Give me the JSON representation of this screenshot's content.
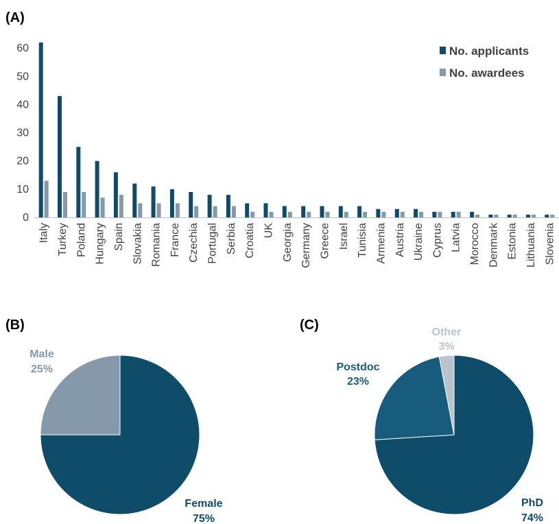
{
  "panels": {
    "a": "(A)",
    "b": "(B)",
    "c": "(C)"
  },
  "colors": {
    "applicants": "#0f4c6a",
    "awardees": "#8599ab",
    "axis": "#bfbfbf",
    "tick_text": "#404040",
    "female": "#0f4c6a",
    "male": "#8599ab",
    "phd": "#0f4c6a",
    "postdoc": "#175b7d",
    "other": "#b9c3cb"
  },
  "chart_data": [
    {
      "type": "bar",
      "categories": [
        "Italy",
        "Turkey",
        "Poland",
        "Hungary",
        "Spain",
        "Slovakia",
        "Romania",
        "France",
        "Czechia",
        "Portugal",
        "Serbia",
        "Croatia",
        "UK",
        "Georgia",
        "Germany",
        "Greece",
        "Israel",
        "Tunisia",
        "Armenia",
        "Austria",
        "Ukraine",
        "Cyprus",
        "Latvia",
        "Morocco",
        "Denmark",
        "Estonia",
        "Lithuania",
        "Slovenia"
      ],
      "series": [
        {
          "name": "No. applicants",
          "values": [
            62,
            43,
            25,
            20,
            16,
            12,
            11,
            10,
            9,
            8,
            8,
            5,
            5,
            4,
            4,
            4,
            4,
            4,
            3,
            3,
            3,
            2,
            2,
            2,
            1,
            1,
            1,
            1
          ]
        },
        {
          "name": "No. awardees",
          "values": [
            13,
            9,
            9,
            7,
            8,
            5,
            5,
            5,
            4,
            4,
            4,
            2,
            2,
            2,
            2,
            2,
            2,
            2,
            2,
            2,
            2,
            2,
            2,
            1,
            1,
            1,
            1,
            1
          ]
        }
      ],
      "ylim": [
        0,
        62
      ],
      "yticks": [
        "0",
        "10",
        "20",
        "30",
        "40",
        "50",
        "60"
      ],
      "legend": "top-right",
      "grid": false
    },
    {
      "type": "pie",
      "slices": [
        {
          "name": "Female",
          "value": 75,
          "label": "75%"
        },
        {
          "name": "Male",
          "value": 25,
          "label": "25%"
        }
      ]
    },
    {
      "type": "pie",
      "slices": [
        {
          "name": "PhD",
          "value": 74,
          "label": "74%"
        },
        {
          "name": "Postdoc",
          "value": 23,
          "label": "23%"
        },
        {
          "name": "Other",
          "value": 3,
          "label": "3%"
        }
      ]
    }
  ]
}
